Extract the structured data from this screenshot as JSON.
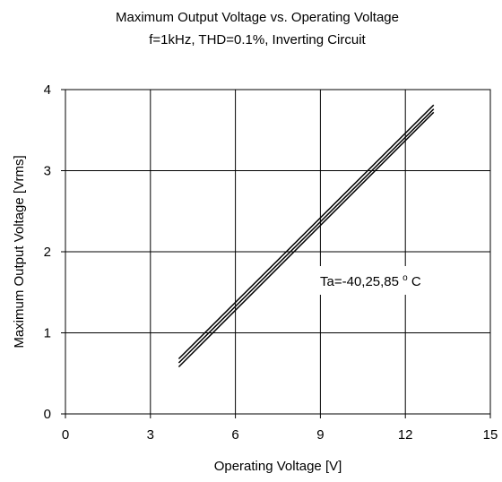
{
  "chart_data": {
    "type": "line",
    "title": "Maximum Output Voltage vs. Operating Voltage",
    "subtitle": "f=1kHz, THD=0.1%, Inverting Circuit",
    "xlabel": "Operating Voltage [V]",
    "ylabel": "Maximum Output Voltage [Vrms]",
    "xlim": [
      0,
      15
    ],
    "ylim": [
      0,
      4
    ],
    "xticks": [
      "0",
      "3",
      "6",
      "9",
      "12",
      "15"
    ],
    "yticks": [
      "0",
      "1",
      "2",
      "3",
      "4"
    ],
    "grid": true,
    "annotation": {
      "text_prefix": "Ta=-40,25,85",
      "text_sup": "o",
      "text_suffix": "C"
    },
    "series": [
      {
        "x": [
          4,
          13
        ],
        "y": [
          0.58,
          3.72
        ]
      },
      {
        "x": [
          4,
          13
        ],
        "y": [
          0.63,
          3.76
        ]
      },
      {
        "x": [
          4,
          13
        ],
        "y": [
          0.68,
          3.81
        ]
      }
    ],
    "colors": {
      "line": "#000000",
      "grid": "#000000",
      "background": "#ffffff"
    }
  }
}
